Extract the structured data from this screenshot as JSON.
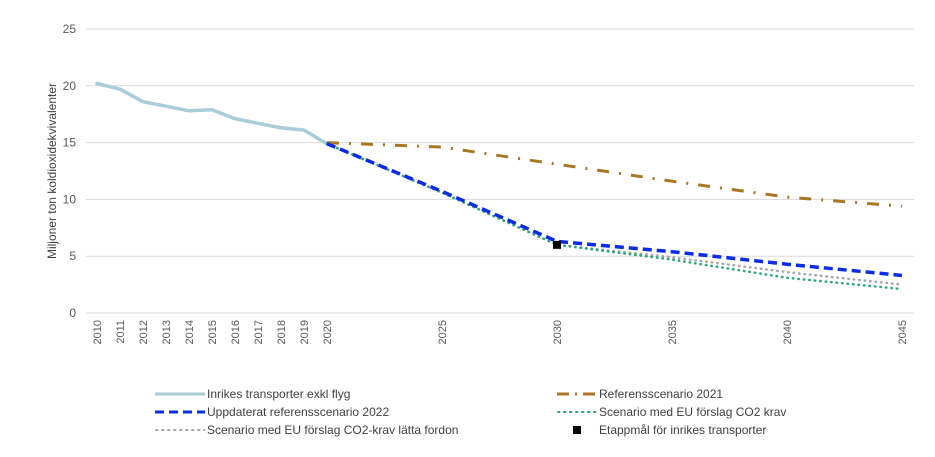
{
  "chart_data": {
    "type": "line",
    "title": "",
    "xlabel": "",
    "ylabel": "Miljoner ton koldioxidekvivalenter",
    "ylim": [
      0,
      25
    ],
    "xlim": [
      2010,
      2045
    ],
    "yticks": [
      0,
      5,
      10,
      15,
      20,
      25
    ],
    "xticks": [
      2010,
      2011,
      2012,
      2013,
      2014,
      2015,
      2016,
      2017,
      2018,
      2019,
      2020,
      2025,
      2030,
      2035,
      2040,
      2045
    ],
    "grid": true,
    "legend_position": "bottom",
    "series": [
      {
        "name": "Inrikes transporter exkl flyg",
        "color": "#a9cdd8",
        "style": "solid",
        "x": [
          2010,
          2011,
          2012,
          2013,
          2014,
          2015,
          2016,
          2017,
          2018,
          2019,
          2020
        ],
        "values": [
          20.2,
          19.7,
          18.6,
          18.2,
          17.8,
          17.9,
          17.1,
          16.7,
          16.3,
          16.1,
          14.9
        ]
      },
      {
        "name": "Referensscenario 2021",
        "color": "#a87724",
        "style": "dash-dot",
        "x": [
          2020,
          2025,
          2030,
          2035,
          2040,
          2045
        ],
        "values": [
          15.0,
          14.6,
          13.1,
          11.6,
          10.2,
          9.4
        ]
      },
      {
        "name": "Uppdaterat referensscenario 2022",
        "color": "#0a2be8",
        "style": "dashed",
        "x": [
          2020,
          2025,
          2030,
          2035,
          2040,
          2045
        ],
        "values": [
          14.9,
          10.7,
          6.3,
          5.4,
          4.3,
          3.3
        ]
      },
      {
        "name": "Scenario med EU förslag CO2 krav",
        "color": "#2aa77a",
        "style": "dotted",
        "x": [
          2020,
          2025,
          2030,
          2035,
          2040,
          2045
        ],
        "values": [
          14.9,
          10.6,
          6.0,
          4.7,
          3.1,
          2.1
        ]
      },
      {
        "name": "Scenario med EU förslag CO2-krav lätta fordon",
        "color": "#a6a6a6",
        "style": "dotted",
        "x": [
          2020,
          2025,
          2030,
          2035,
          2040,
          2045
        ],
        "values": [
          14.9,
          10.6,
          6.0,
          4.9,
          3.6,
          2.5
        ]
      },
      {
        "name": "Etappmål för inrikes transporter",
        "color": "#000000",
        "style": "marker-square",
        "x": [
          2030
        ],
        "values": [
          6.0
        ]
      }
    ]
  },
  "legend": [
    {
      "label": "Inrikes transporter exkl flyg",
      "series": 0
    },
    {
      "label": "Referensscenario 2021",
      "series": 1
    },
    {
      "label": "Uppdaterat referensscenario 2022",
      "series": 2
    },
    {
      "label": "Scenario med EU förslag CO2 krav",
      "series": 3
    },
    {
      "label": "Scenario med EU förslag CO2-krav lätta fordon",
      "series": 4
    },
    {
      "label": "Etappmål för inrikes transporter",
      "series": 5
    }
  ]
}
